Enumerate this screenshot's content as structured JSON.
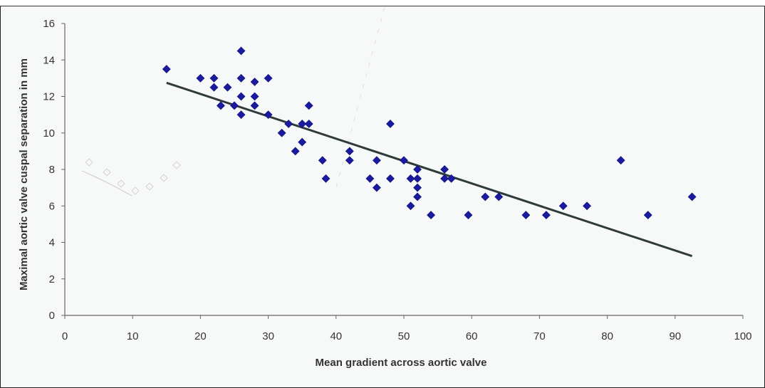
{
  "chart_data": {
    "type": "scatter",
    "title": "",
    "xlabel": "Mean gradient across aortic valve",
    "ylabel": "Maximal aortic valve cuspal separation in mm",
    "xlim": [
      0,
      100
    ],
    "ylim": [
      0,
      16
    ],
    "x_ticks": [
      "0",
      "10",
      "20",
      "30",
      "40",
      "50",
      "60",
      "70",
      "80",
      "90",
      "100"
    ],
    "y_ticks": [
      "0",
      "2",
      "4",
      "6",
      "8",
      "10",
      "12",
      "14",
      "16"
    ],
    "grid": false,
    "legend": "none",
    "marker_color": "#1a1aa0",
    "trendline_color": "#2f3b3b",
    "series": [
      {
        "x": [
          15,
          20,
          22,
          22,
          23,
          24,
          25,
          26,
          26,
          26,
          26,
          28,
          28,
          28,
          30,
          30,
          32,
          33,
          34,
          35,
          35,
          36,
          36,
          38,
          38.5,
          42,
          42,
          45,
          46,
          46,
          48,
          48,
          50,
          51,
          51,
          52,
          52,
          52,
          52,
          54,
          56,
          56,
          57,
          59.5,
          62,
          64,
          68,
          71,
          73.5,
          77,
          82,
          86,
          92.5
        ],
        "y": [
          13.5,
          13,
          13,
          12.5,
          11.5,
          12.5,
          11.5,
          14.5,
          13,
          12,
          11,
          12.8,
          12,
          11.5,
          13,
          11,
          10,
          10.5,
          9,
          10.5,
          9.5,
          11.5,
          10.5,
          8.5,
          7.5,
          9,
          8.5,
          7.5,
          8.5,
          7,
          10.5,
          7.5,
          8.5,
          7.5,
          6,
          8,
          7.5,
          7,
          6.5,
          5.5,
          8,
          7.5,
          7.5,
          5.5,
          6.5,
          6.5,
          5.5,
          5.5,
          6,
          6,
          8.5,
          5.5,
          6.5
        ]
      }
    ],
    "trendline": {
      "x": [
        15,
        92.5
      ],
      "y": [
        12.75,
        3.25
      ]
    }
  }
}
